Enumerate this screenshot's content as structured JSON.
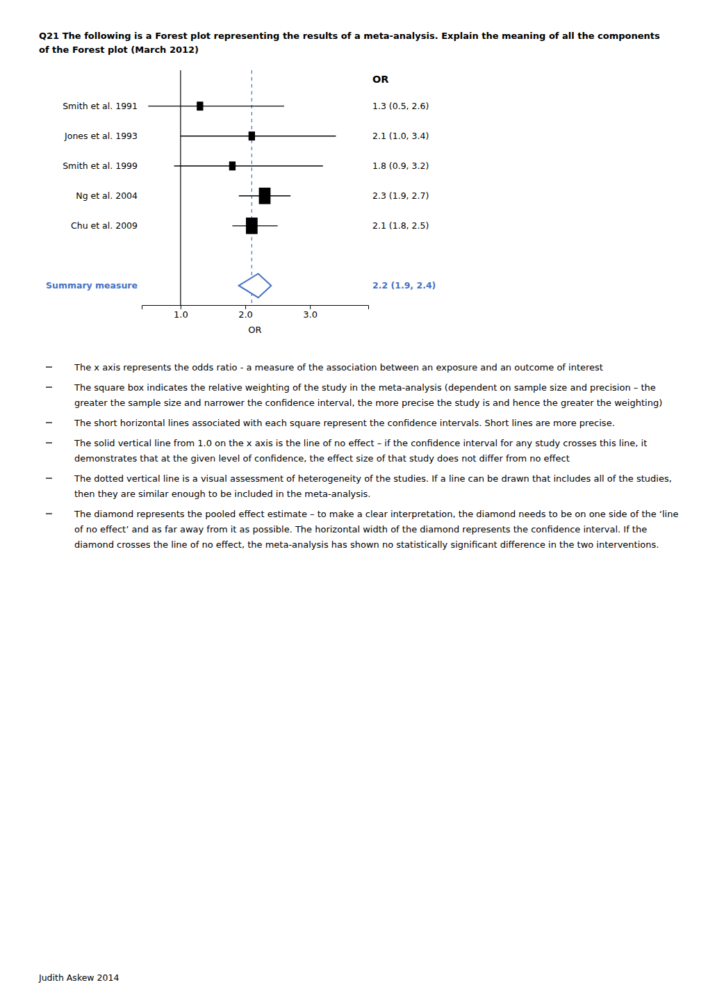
{
  "chart_data": {
    "type": "forest",
    "title": [
      "Q21 The following is a Forest plot representing the results of a meta-analysis. Explain the meaning of all the components",
      "of the Forest plot (March 2012)"
    ],
    "categories": [
      "Smith et al. 1991",
      "Jones et al. 1993",
      "Smith et al. 1999",
      "Ng et al. 2004",
      "Chu et al. 2009"
    ],
    "values": [
      1.3,
      2.1,
      1.8,
      2.3,
      2.1
    ],
    "ci_low": [
      0.5,
      1.0,
      0.9,
      1.9,
      1.8
    ],
    "ci_high": [
      2.6,
      3.4,
      3.2,
      2.7,
      2.5
    ],
    "value_labels": [
      "1.3 (0.5, 2.6)",
      "2.1 (1.0, 3.4)",
      "1.8 (0.9, 3.2)",
      "2.3 (1.9, 2.7)",
      "2.1 (1.8, 2.5)"
    ],
    "box_widths": [
      0.1,
      0.1,
      0.1,
      0.18,
      0.18
    ],
    "box_heights": [
      0.3,
      0.3,
      0.3,
      0.55,
      0.55
    ],
    "color": "#000000",
    "summary": {
      "label": "Summary measure",
      "value": 2.2,
      "ci_low": 1.9,
      "ci_high": 2.4,
      "value_label": "2.2 (1.9, 2.4)",
      "height": 0.4,
      "color": "#4472C4"
    },
    "reference_lines": [
      {
        "value": 1.0,
        "color": "#000000",
        "line_style": "solid"
      },
      {
        "value": 2.1,
        "color": "#4472C4",
        "line_style": "dashed"
      }
    ],
    "xlim": [
      0.4,
      3.9
    ],
    "xticks": [
      {
        "value": 1.0,
        "label": "1.0"
      },
      {
        "value": 2.0,
        "label": "2.0"
      },
      {
        "value": 3.0,
        "label": "3.0"
      }
    ],
    "xlabel": "OR",
    "value_header": "OR",
    "annotations": [
      "The x axis represents the odds ratio - a measure of the association between an exposure and an outcome of interest",
      "The square box indicates the relative weighting of the study in the meta-analysis (dependent on sample size and precision – the greater the sample size and narrower the confidence interval, the more precise the study is and hence the greater the weighting)",
      "The short horizontal lines associated with each square represent the confidence intervals. Short lines are more precise.",
      "The solid vertical line from 1.0 on the x axis is the line of no effect – if the confidence interval for any study crosses this line, it demonstrates that at the given level of confidence, the effect size of that study does not differ from no effect",
      "The dotted vertical line is a visual assessment of heterogeneity of the studies. If a line can be drawn that includes all of the studies, then they are similar enough to be included in the meta-analysis.",
      "The diamond represents the pooled effect estimate – to make a clear interpretation, the diamond needs to be on one side of the ‘line of no effect’ and as far away from it as possible. The horizontal width of the diamond represents the confidence interval. If the diamond crosses the line of no effect, the meta-analysis has shown no statistically significant difference in the two interventions."
    ],
    "footer": "Judith Askew 2014"
  }
}
